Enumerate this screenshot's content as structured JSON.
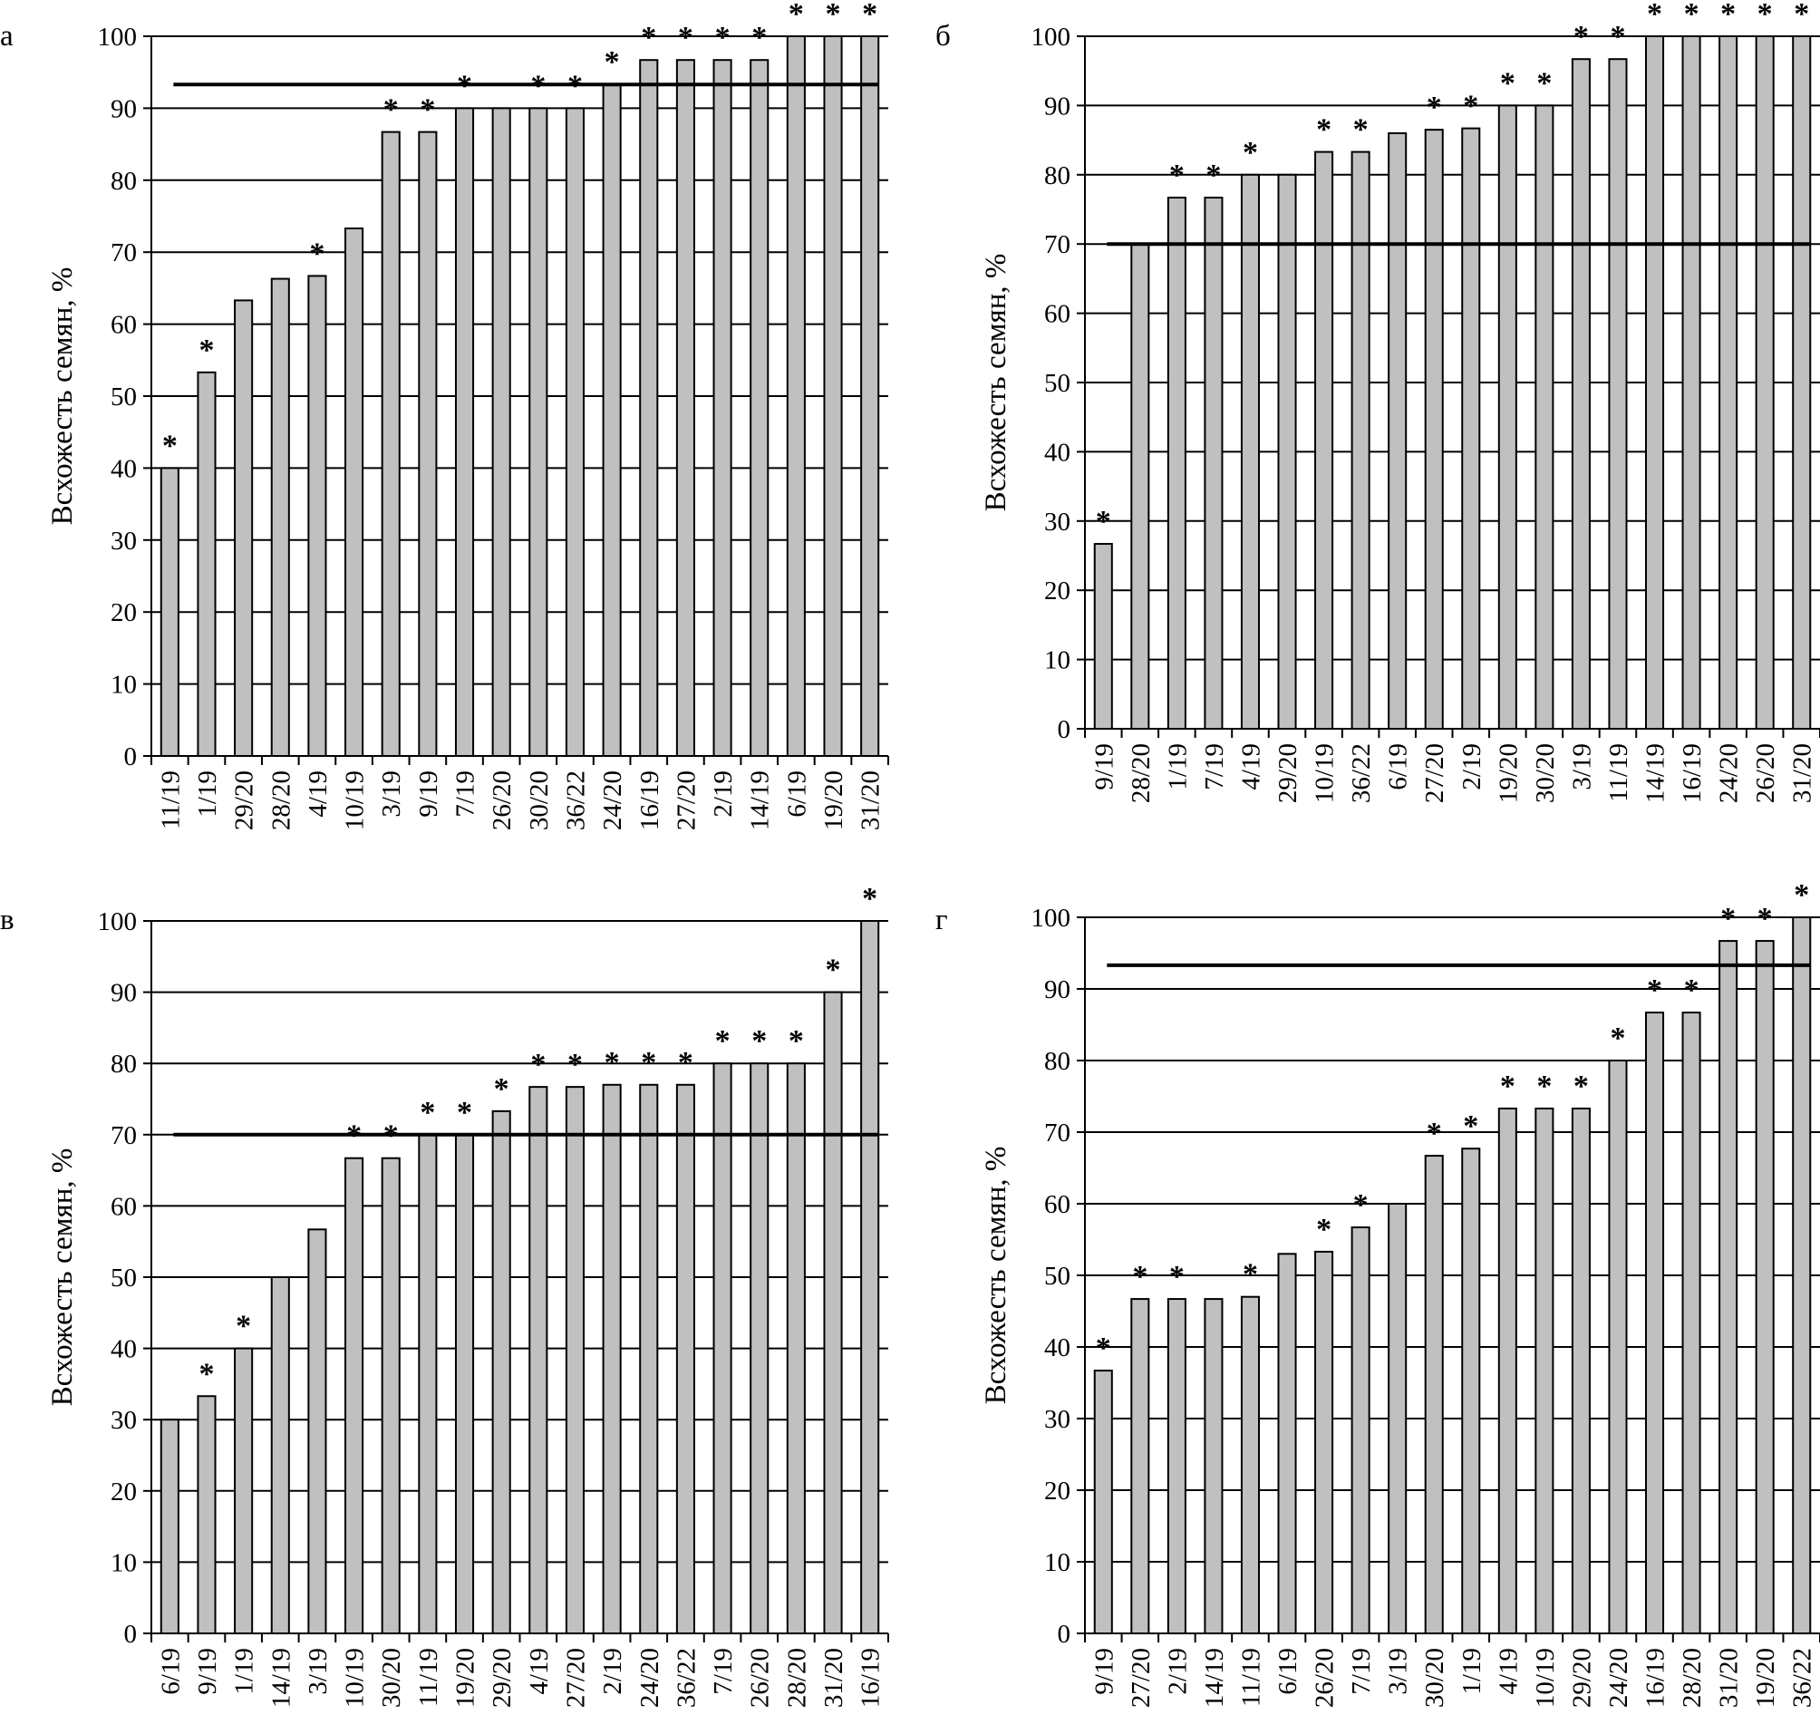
{
  "chart_data": [
    {
      "type": "bar",
      "panel_label": "а",
      "ylabel": "Всхожесть семян, %",
      "ylim": [
        0,
        100
      ],
      "yticks": [
        "0",
        "10",
        "20",
        "30",
        "40",
        "50",
        "60",
        "70",
        "80",
        "90",
        "100"
      ],
      "grid": true,
      "bar_color": "#c0c0c0",
      "reference_value": 93.3,
      "categories": [
        "11/19",
        "1/19",
        "29/20",
        "28/20",
        "4/19",
        "10/19",
        "3/19",
        "9/19",
        "7/19",
        "26/20",
        "30/20",
        "36/22",
        "24/20",
        "16/19",
        "27/20",
        "2/19",
        "14/19",
        "6/19",
        "19/20",
        "31/20"
      ],
      "values": [
        40,
        53.3,
        63.3,
        66.3,
        66.7,
        73.3,
        86.7,
        86.7,
        90,
        90,
        90,
        90,
        93.3,
        96.7,
        96.7,
        96.7,
        96.7,
        100,
        100,
        100
      ],
      "marks": [
        "*",
        "*",
        "",
        "",
        "*",
        "",
        "*",
        "*",
        "*",
        "",
        "*",
        "*",
        "*",
        "*",
        "*",
        "*",
        "*",
        "*",
        "*",
        "*"
      ]
    },
    {
      "type": "bar",
      "panel_label": "б",
      "ylabel": "Всхожесть семян, %",
      "ylim": [
        0,
        100
      ],
      "yticks": [
        "0",
        "10",
        "20",
        "30",
        "40",
        "50",
        "60",
        "70",
        "80",
        "90",
        "100"
      ],
      "grid": true,
      "bar_color": "#c0c0c0",
      "reference_value": 70,
      "categories": [
        "9/19",
        "28/20",
        "1/19",
        "7/19",
        "4/19",
        "29/20",
        "10/19",
        "36/22",
        "6/19",
        "27/20",
        "2/19",
        "19/20",
        "30/20",
        "3/19",
        "11/19",
        "14/19",
        "16/19",
        "24/20",
        "26/20",
        "31/20"
      ],
      "values": [
        26.7,
        70,
        76.7,
        76.7,
        80,
        80,
        83.3,
        83.3,
        86,
        86.5,
        86.7,
        90,
        90,
        96.7,
        96.7,
        100,
        100,
        100,
        100,
        100
      ],
      "marks": [
        "*",
        "",
        "*",
        "*",
        "*",
        "",
        "*",
        "*",
        "",
        "*",
        "*",
        "*",
        "*",
        "*",
        "*",
        "*",
        "*",
        "*",
        "*",
        "*"
      ]
    },
    {
      "type": "bar",
      "panel_label": "в",
      "ylabel": "Всхожесть семян, %",
      "ylim": [
        0,
        100
      ],
      "yticks": [
        "0",
        "10",
        "20",
        "30",
        "40",
        "50",
        "60",
        "70",
        "80",
        "90",
        "100"
      ],
      "grid": true,
      "bar_color": "#c0c0c0",
      "reference_value": 70,
      "categories": [
        "6/19",
        "9/19",
        "1/19",
        "14/19",
        "3/19",
        "10/19",
        "30/20",
        "11/19",
        "19/20",
        "29/20",
        "4/19",
        "27/20",
        "2/19",
        "24/20",
        "36/22",
        "7/19",
        "26/20",
        "28/20",
        "31/20",
        "16/19"
      ],
      "values": [
        30,
        33.3,
        40,
        50,
        56.7,
        66.7,
        66.7,
        70,
        70,
        73.3,
        76.7,
        76.7,
        77,
        77,
        77,
        80,
        80,
        80,
        90,
        100
      ],
      "marks": [
        "",
        "*",
        "*",
        "",
        "",
        "*",
        "*",
        "*",
        "*",
        "*",
        "*",
        "*",
        "*",
        "*",
        "*",
        "*",
        "*",
        "*",
        "*",
        "*"
      ]
    },
    {
      "type": "bar",
      "panel_label": "г",
      "ylabel": "Всхожесть семян, %",
      "ylim": [
        0,
        100
      ],
      "yticks": [
        "0",
        "10",
        "20",
        "30",
        "40",
        "50",
        "60",
        "70",
        "80",
        "90",
        "100"
      ],
      "grid": true,
      "bar_color": "#c0c0c0",
      "reference_value": 93.3,
      "categories": [
        "9/19",
        "27/20",
        "2/19",
        "14/19",
        "11/19",
        "6/19",
        "26/20",
        "7/19",
        "3/19",
        "30/20",
        "1/19",
        "4/19",
        "10/19",
        "29/20",
        "24/20",
        "16/19",
        "28/20",
        "31/20",
        "19/20",
        "36/22"
      ],
      "values": [
        36.7,
        46.7,
        46.7,
        46.7,
        47,
        53,
        53.3,
        56.7,
        60,
        66.7,
        67.7,
        73.3,
        73.3,
        73.3,
        80,
        86.7,
        86.7,
        96.7,
        96.7,
        100
      ],
      "marks": [
        "*",
        "*",
        "*",
        "",
        "*",
        "",
        "*",
        "*",
        "",
        "*",
        "*",
        "*",
        "*",
        "*",
        "*",
        "*",
        "*",
        "*",
        "*",
        "*"
      ]
    }
  ]
}
